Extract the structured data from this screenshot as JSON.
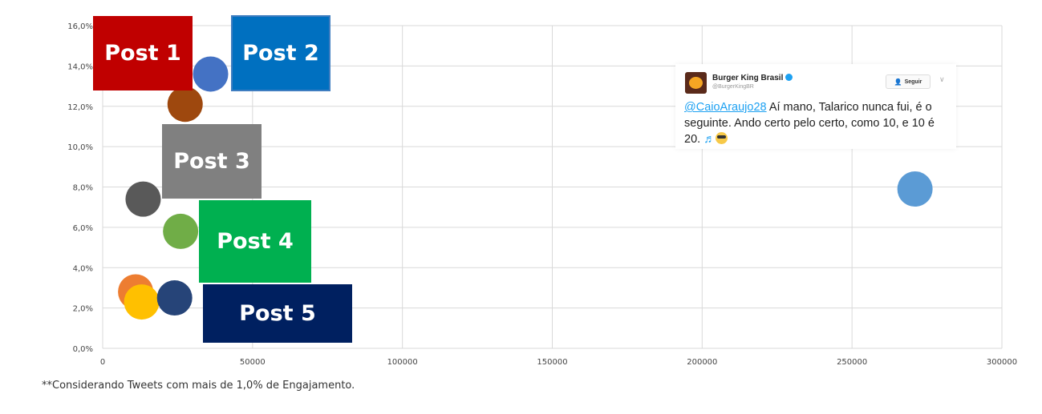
{
  "chart_data": {
    "type": "scatter",
    "title": "",
    "xlabel": "",
    "ylabel": "",
    "xlim": [
      0,
      300000
    ],
    "ylim": [
      0,
      0.16
    ],
    "x_ticks": [
      "0",
      "50000",
      "100000",
      "150000",
      "200000",
      "250000",
      "300000"
    ],
    "y_ticks": [
      "0,0%",
      "2,0%",
      "4,0%",
      "6,0%",
      "8,0%",
      "10,0%",
      "12,0%",
      "14,0%",
      "16,0%"
    ],
    "grid": true,
    "bubble_style": "bubble",
    "points": [
      {
        "x": 36000,
        "y": 0.136,
        "color": "#4472c4"
      },
      {
        "x": 27500,
        "y": 0.121,
        "color": "#9e480e"
      },
      {
        "x": 13500,
        "y": 0.074,
        "color": "#595959"
      },
      {
        "x": 26000,
        "y": 0.058,
        "color": "#70ad47"
      },
      {
        "x": 11000,
        "y": 0.028,
        "color": "#ed7d31"
      },
      {
        "x": 13000,
        "y": 0.023,
        "color": "#ffc000"
      },
      {
        "x": 24000,
        "y": 0.025,
        "color": "#264478"
      },
      {
        "x": 271000,
        "y": 0.079,
        "color": "#5b9bd5"
      }
    ],
    "labels": [
      {
        "text": "Post 1",
        "color": "#c00000"
      },
      {
        "text": "Post 2",
        "color": "#0070c0"
      },
      {
        "text": "Post 3",
        "color": "#808080"
      },
      {
        "text": "Post 4",
        "color": "#00b050"
      },
      {
        "text": "Post 5",
        "color": "#002060"
      }
    ]
  },
  "tweet": {
    "name": "Burger King Brasil",
    "handle": "@BurgerKingBR",
    "follow_label": "Seguir",
    "mention": "@CaioAraujo28",
    "text": " Aí mano, Talarico nunca fui, é o seguinte. Ando certo pelo certo, como 10, e 10 é 20. ",
    "icons": [
      "music-icon",
      "smile-icon"
    ]
  },
  "footnote": "**Considerando Tweets com mais de 1,0% de Engajamento."
}
